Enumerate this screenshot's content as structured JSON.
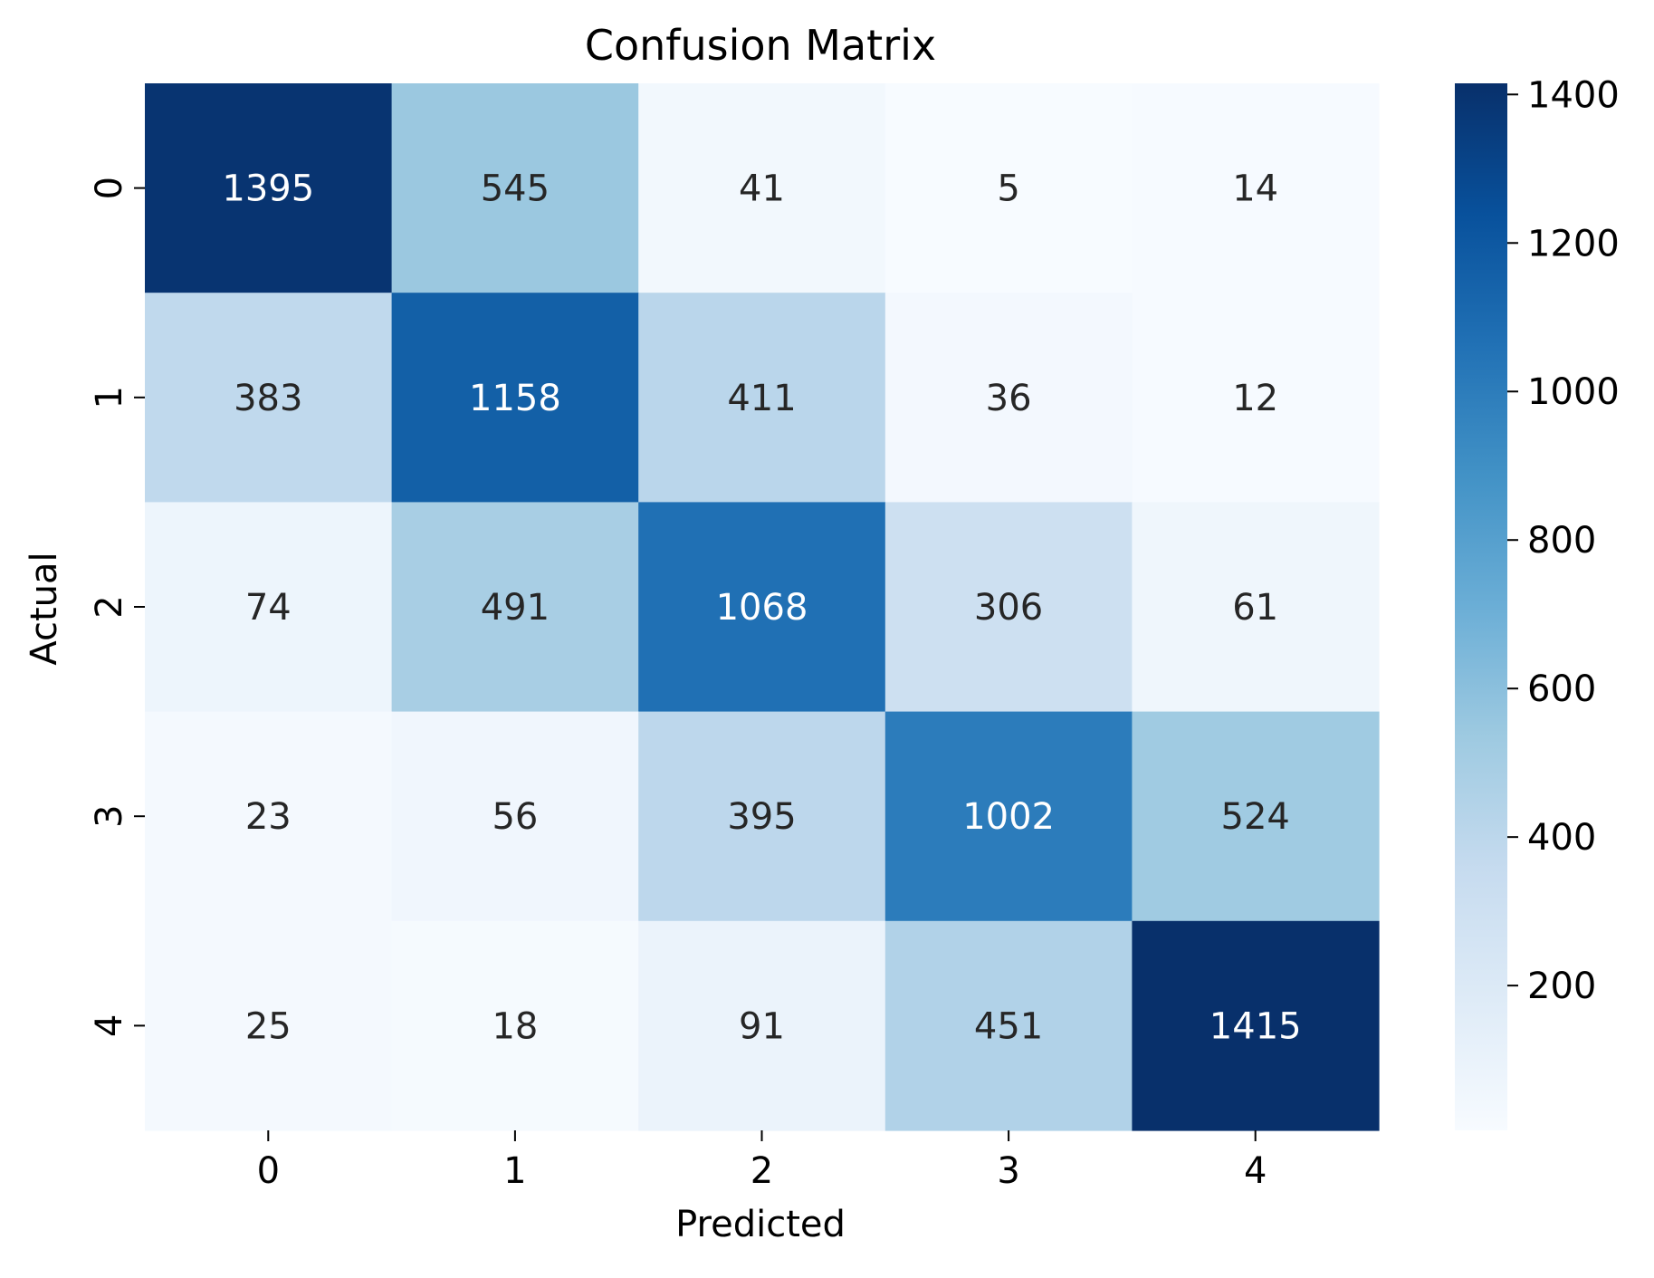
{
  "chart_data": {
    "type": "heatmap",
    "title": "Confusion Matrix",
    "xlabel": "Predicted",
    "ylabel": "Actual",
    "x_categories": [
      "0",
      "1",
      "2",
      "3",
      "4"
    ],
    "y_categories": [
      "0",
      "1",
      "2",
      "3",
      "4"
    ],
    "values": [
      [
        1395,
        545,
        41,
        5,
        14
      ],
      [
        383,
        1158,
        411,
        36,
        12
      ],
      [
        74,
        491,
        1068,
        306,
        61
      ],
      [
        23,
        56,
        395,
        1002,
        524
      ],
      [
        25,
        18,
        91,
        451,
        1415
      ]
    ],
    "colormap": "Blues",
    "colorbar": {
      "range": [
        5,
        1415
      ],
      "ticks": [
        200,
        400,
        600,
        800,
        1000,
        1200,
        1400
      ],
      "tick_labels": [
        "200",
        "400",
        "600",
        "800",
        "1000",
        "1200",
        "1400"
      ]
    },
    "colors": {
      "light_text": "#ffffff",
      "dark_text": "#262626"
    }
  }
}
